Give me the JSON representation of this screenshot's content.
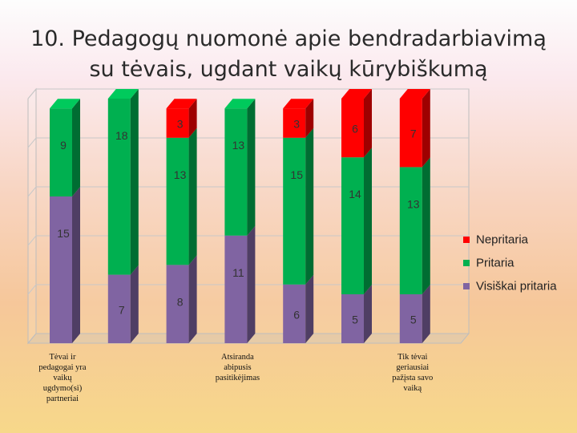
{
  "title": {
    "line1": "10. Pedagogų nuomonė apie bendradarbiavimą",
    "line2": "su tėvais, ugdant vaikų kūrybiškumą"
  },
  "chart_data": {
    "type": "bar",
    "stacked": true,
    "style": "3d",
    "categories": [
      "Tėvai ir pedagogai yra vaikų ugdymo(si) partneriai",
      "",
      "",
      "Atsiranda abipusis pasitikėjimas",
      "",
      "",
      "Tik tėvai geriausiai pažįsta savo vaiką"
    ],
    "category_labels": [
      {
        "index": 0,
        "lines": [
          "Tėvai ir",
          "pedagogai yra",
          "vaikų",
          "ugdymo(si)",
          "partneriai"
        ]
      },
      {
        "index": 3,
        "lines": [
          "Atsiranda",
          "abipusis",
          "pasitikėjimas"
        ]
      },
      {
        "index": 6,
        "lines": [
          "Tik tėvai",
          "geriausiai",
          "pažįsta savo",
          "vaiką"
        ]
      }
    ],
    "series": [
      {
        "name": "Visiškai pritaria",
        "values": [
          15,
          7,
          8,
          11,
          6,
          5,
          5
        ],
        "color": "#8064a2"
      },
      {
        "name": "Pritaria",
        "values": [
          9,
          18,
          13,
          13,
          15,
          14,
          13
        ],
        "color": "#00b050"
      },
      {
        "name": "Nepritaria",
        "values": [
          0,
          0,
          3,
          0,
          3,
          6,
          7
        ],
        "color": "#ff0000"
      }
    ],
    "ylim": [
      0,
      25
    ],
    "grid": true,
    "legend_position": "right"
  }
}
